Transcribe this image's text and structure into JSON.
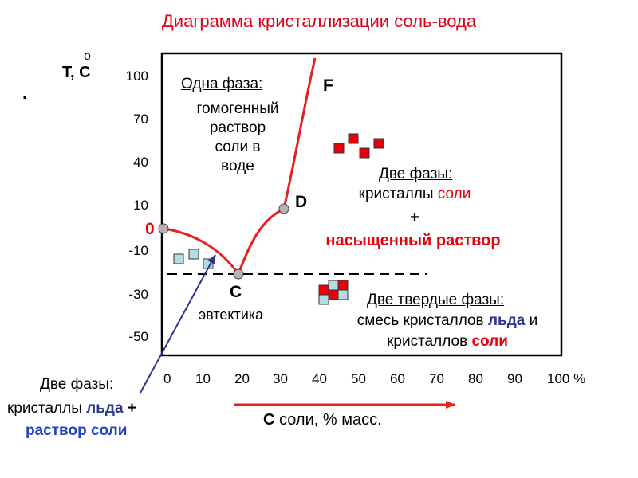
{
  "title": "Диаграмма кристаллизации соль-вода",
  "y_axis": {
    "label": "T, C",
    "degree": "о",
    "dot": ".",
    "ticks": [
      "100",
      "70",
      "40",
      "10",
      "-10",
      "-30",
      "-50"
    ]
  },
  "x_axis": {
    "ticks": [
      "0",
      "10",
      "20",
      "30",
      "40",
      "50",
      "60",
      "70",
      "80",
      "90",
      "100 %"
    ],
    "label_c": "C",
    "label_rest": " соли, % масс."
  },
  "points": {
    "zero": "0",
    "c": "C",
    "d": "D",
    "f": "F"
  },
  "eutectic": "эвтектика",
  "region_single": {
    "title": "Одна фаза:",
    "text": "гомогенный\nраствор\nсоли в\nводе"
  },
  "region_salt_solution": {
    "title": "Две фазы:",
    "line1_prefix": "кристаллы ",
    "line1_highlight": "соли",
    "plus": "+",
    "line2": "насыщенный раствор"
  },
  "region_two_solids": {
    "title": "Две твердые фазы:",
    "line1_prefix": "смесь кристаллов ",
    "line1_ice": "льда",
    "line1_suffix": " и",
    "line2_prefix": "кристаллов ",
    "line2_salt": "соли"
  },
  "region_ice_solution": {
    "title": "Две фазы:",
    "line1_prefix": "кристаллы ",
    "line1_ice": "льда",
    "line1_plus": " +",
    "line2": "раствор соли"
  },
  "colors": {
    "curve": "#e8201e",
    "salt_square": "#e8000b",
    "ice_square": "#b3dde0",
    "accent_red": "#e8000b",
    "accent_blue": "#2a3690",
    "arrow_blue": "#2a3690",
    "marker_gray": "#b4b4b4"
  }
}
